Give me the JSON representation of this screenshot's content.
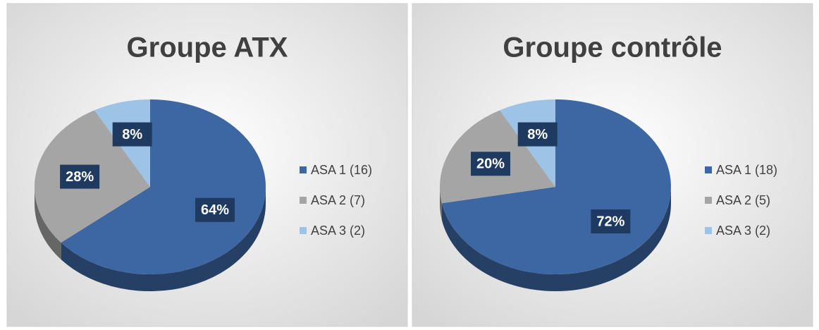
{
  "chart_data": [
    {
      "type": "pie",
      "title": "Groupe ATX",
      "categories": [
        "ASA 1 (16)",
        "ASA 2 (7)",
        "ASA 3 (2)"
      ],
      "values": [
        64,
        28,
        8
      ],
      "value_labels": [
        "64%",
        "28%",
        "8%"
      ],
      "colors": [
        "#3d67a3",
        "#a5a5a5",
        "#9dc3e6"
      ],
      "legend": "right"
    },
    {
      "type": "pie",
      "title": "Groupe contrôle",
      "categories": [
        "ASA 1 (18)",
        "ASA 2 (5)",
        "ASA 3 (2)"
      ],
      "values": [
        72,
        20,
        8
      ],
      "value_labels": [
        "72%",
        "20%",
        "8%"
      ],
      "colors": [
        "#3d67a3",
        "#a5a5a5",
        "#9dc3e6"
      ],
      "legend": "right"
    }
  ]
}
